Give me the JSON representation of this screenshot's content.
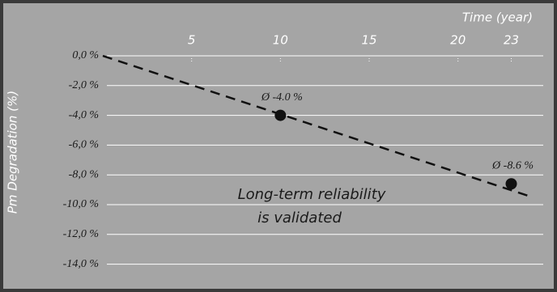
{
  "chart_data": {
    "type": "scatter",
    "x_label": "Time (year)",
    "y_label": "Pm Degradation (%)",
    "annotation": [
      "Long-term reliability",
      "is validated"
    ],
    "x": [
      10,
      23
    ],
    "values": [
      -4.0,
      -8.6
    ],
    "value_labels": [
      "Ø -4.0 %",
      "Ø -8.6 %"
    ],
    "color": "#111111",
    "trend": {
      "x": [
        0,
        24.2
      ],
      "values": [
        0,
        -9.5
      ],
      "color": "#111111"
    },
    "xlim": [
      0,
      24.8
    ],
    "ylim": [
      -15,
      0
    ],
    "xticks": [
      5,
      10,
      15,
      20,
      23
    ],
    "yticks": [
      {
        "value": 0,
        "label": "0,0 %"
      },
      {
        "value": -2,
        "label": "-2,0 %"
      },
      {
        "value": -4,
        "label": "-4,0 %"
      },
      {
        "value": -6,
        "label": "-6,0 %"
      },
      {
        "value": -8,
        "label": "-8,0 %"
      },
      {
        "value": -10,
        "label": "-10,0 %"
      },
      {
        "value": -12,
        "label": "-12,0 %"
      },
      {
        "value": -14,
        "label": "-14,0 %"
      }
    ],
    "grid": true
  }
}
